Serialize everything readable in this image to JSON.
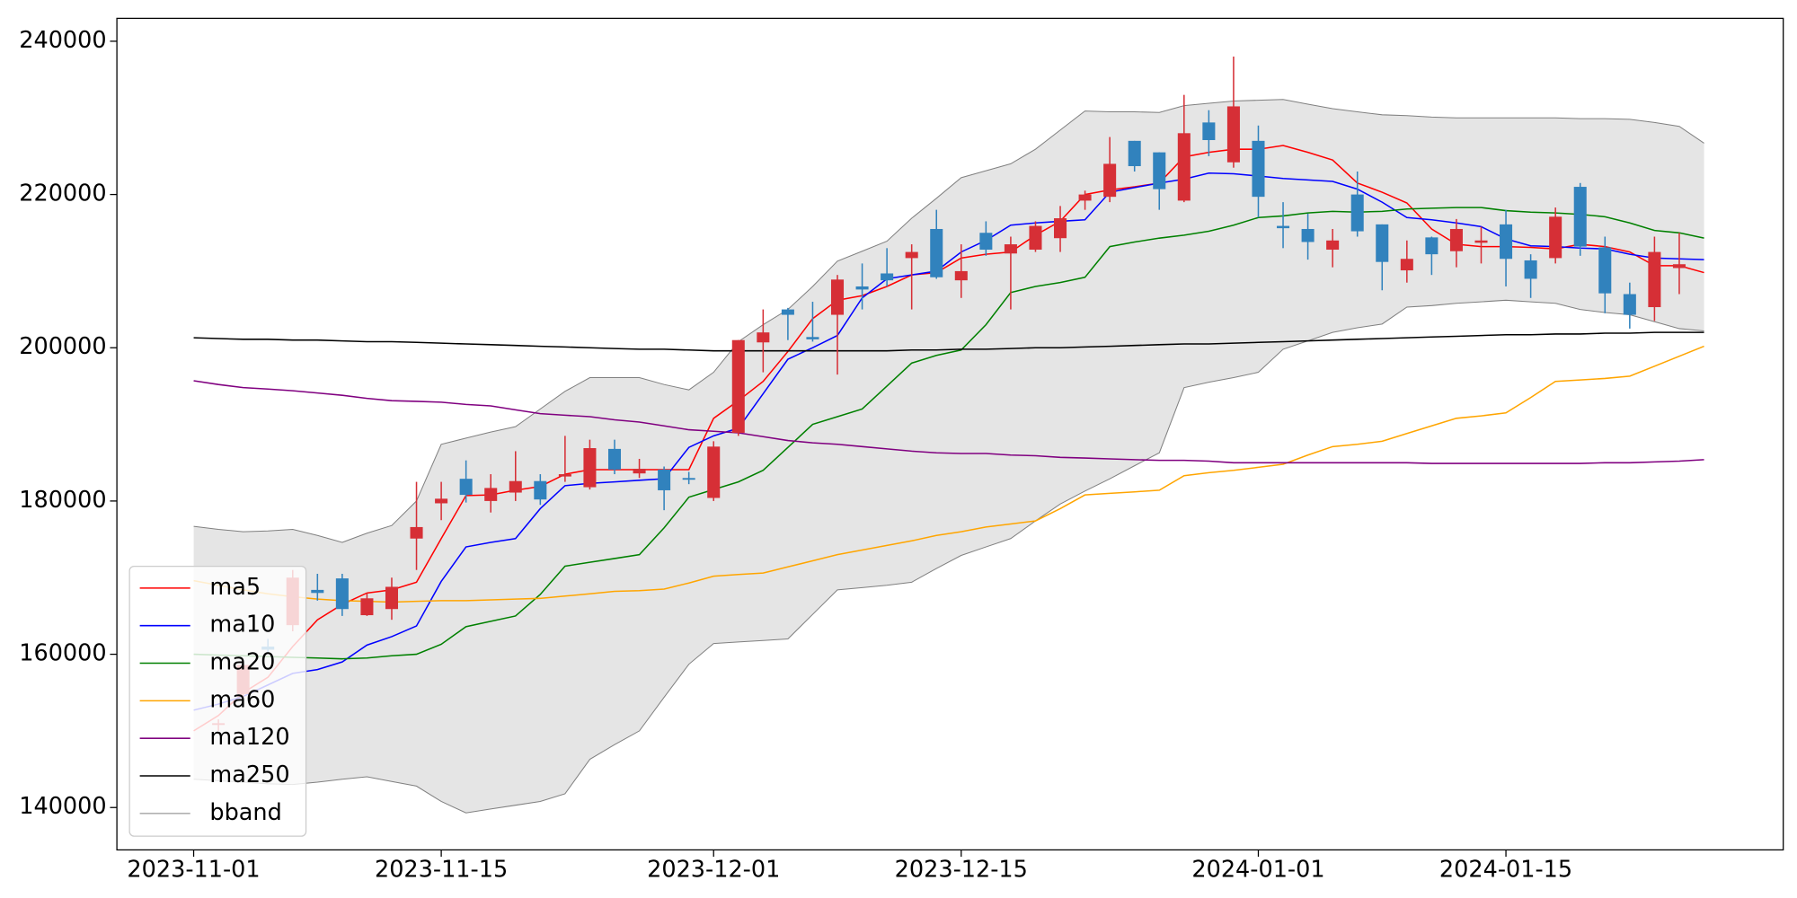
{
  "chart_data": {
    "type": "candlestick",
    "categories": [
      "2023-11-01",
      null,
      null,
      null,
      null,
      null,
      null,
      null,
      null,
      null,
      "2023-11-15",
      null,
      null,
      null,
      null,
      null,
      null,
      null,
      null,
      null,
      null,
      "2023-12-01",
      null,
      null,
      null,
      null,
      null,
      null,
      null,
      null,
      null,
      "2023-12-15",
      null,
      null,
      null,
      null,
      null,
      null,
      null,
      null,
      null,
      null,
      null,
      "2024-01-01",
      null,
      null,
      null,
      null,
      null,
      null,
      null,
      null,
      null,
      "2024-01-15",
      null,
      null,
      null,
      null,
      null,
      null,
      null,
      null
    ],
    "open": [
      null,
      150800,
      154800,
      161000,
      163800,
      168400,
      169900,
      165100,
      165900,
      175100,
      179700,
      182900,
      180000,
      181100,
      182600,
      183200,
      181800,
      186800,
      183600,
      184100,
      183000,
      180400,
      188900,
      200700,
      205000,
      201400,
      204300,
      208000,
      209700,
      211700,
      215500,
      208800,
      215000,
      212300,
      212800,
      214300,
      219200,
      219700,
      227000,
      225500,
      219200,
      229400,
      224200,
      227000,
      215900,
      215500,
      212800,
      220000,
      216100,
      210100,
      214400,
      212600,
      213700,
      216100,
      211400,
      211700,
      221000,
      213100,
      207000,
      205300,
      210400,
      null
    ],
    "close": [
      null,
      151000,
      158600,
      160600,
      170000,
      168000,
      165900,
      167300,
      168800,
      176600,
      180300,
      180800,
      181700,
      182600,
      180200,
      183500,
      186900,
      184100,
      184200,
      181400,
      182800,
      187100,
      201000,
      202000,
      204300,
      201100,
      208900,
      207600,
      208800,
      212500,
      209200,
      210000,
      212800,
      213500,
      215900,
      216900,
      220000,
      224000,
      223700,
      220700,
      228000,
      227100,
      231500,
      219700,
      215600,
      213800,
      214000,
      215200,
      211200,
      211600,
      212200,
      215500,
      214000,
      211600,
      209000,
      217100,
      213200,
      207100,
      204300,
      212500,
      210900,
      null
    ],
    "high": [
      null,
      151500,
      159000,
      162000,
      171000,
      170500,
      170500,
      168000,
      170000,
      182500,
      182500,
      185300,
      183500,
      186500,
      183500,
      188500,
      188000,
      188000,
      185500,
      184500,
      183800,
      187800,
      201000,
      205000,
      205200,
      206000,
      209500,
      211000,
      213000,
      213500,
      218000,
      213500,
      216500,
      214500,
      216500,
      218500,
      220500,
      227500,
      227000,
      225500,
      233000,
      231000,
      238000,
      229000,
      219000,
      217500,
      215500,
      223000,
      216100,
      214000,
      214500,
      216800,
      215800,
      218000,
      212200,
      218300,
      221500,
      214500,
      208500,
      214500,
      215000,
      null
    ],
    "low": [
      null,
      150000,
      154000,
      160000,
      163000,
      167000,
      165000,
      165000,
      164500,
      171000,
      177500,
      179800,
      178500,
      180000,
      179500,
      182500,
      181500,
      183500,
      183000,
      178800,
      182200,
      180000,
      188500,
      196800,
      201000,
      200800,
      196500,
      205000,
      208000,
      205000,
      209000,
      206500,
      212000,
      205000,
      212500,
      212500,
      218000,
      219000,
      223000,
      218000,
      219000,
      225000,
      223500,
      217000,
      213000,
      211500,
      210500,
      214500,
      207500,
      208500,
      209500,
      210500,
      211000,
      208000,
      206500,
      211000,
      212000,
      204500,
      202500,
      203500,
      207000,
      null
    ],
    "up_color": "#d62f36",
    "down_color": "#3182bd",
    "series": [
      {
        "name": "ma5",
        "color": "#ff0000",
        "values": [
          150000,
          152000,
          155000,
          157000,
          161000,
          164500,
          166500,
          168000,
          168400,
          169400,
          175100,
          180700,
          180800,
          181400,
          181900,
          183500,
          184100,
          184100,
          184100,
          184100,
          184100,
          190800,
          193100,
          195600,
          199500,
          203800,
          206200,
          206800,
          208000,
          209500,
          209800,
          211700,
          212200,
          212500,
          214700,
          216500,
          220000,
          220600,
          221000,
          221500,
          224900,
          225500,
          225900,
          225900,
          226400,
          225500,
          224500,
          221500,
          220300,
          218900,
          215500,
          213500,
          213200,
          213200,
          213100,
          212900,
          213500,
          213200,
          212500,
          210700,
          210700,
          209800
        ]
      },
      {
        "name": "ma10",
        "color": "#0000ff",
        "values": [
          152700,
          153500,
          154500,
          156000,
          157500,
          158000,
          159000,
          161200,
          162300,
          163700,
          169500,
          174000,
          174600,
          175100,
          179000,
          182000,
          182300,
          182500,
          182700,
          182900,
          187000,
          188500,
          189500,
          194000,
          198500,
          200000,
          201600,
          206500,
          209000,
          209500,
          210000,
          212500,
          214000,
          216000,
          216300,
          216500,
          216700,
          220300,
          220900,
          221500,
          222000,
          222800,
          222700,
          222400,
          222100,
          221900,
          221700,
          220700,
          219000,
          217000,
          216700,
          216300,
          215800,
          214200,
          213300,
          213200,
          213000,
          212900,
          212200,
          211700,
          211600,
          211500
        ]
      },
      {
        "name": "ma20",
        "color": "#008000",
        "values": [
          160000,
          159900,
          159800,
          159700,
          159600,
          159500,
          159400,
          159500,
          159800,
          160000,
          161300,
          163600,
          164300,
          165000,
          167800,
          171500,
          172000,
          172500,
          173000,
          176500,
          180500,
          181500,
          182500,
          184000,
          187000,
          190000,
          191000,
          192000,
          195000,
          198000,
          199000,
          199700,
          203000,
          207200,
          208000,
          208500,
          209200,
          213200,
          213800,
          214300,
          214700,
          215200,
          216000,
          217000,
          217200,
          217600,
          217800,
          217700,
          217800,
          218100,
          218200,
          218300,
          218300,
          217900,
          217700,
          217600,
          217400,
          217100,
          216300,
          215300,
          215000,
          214300
        ]
      },
      {
        "name": "ma60",
        "color": "#ffa500",
        "values": [
          169600,
          169000,
          168400,
          167900,
          167500,
          167200,
          167000,
          166900,
          166800,
          166900,
          167000,
          167000,
          167100,
          167200,
          167300,
          167600,
          167900,
          168200,
          168300,
          168500,
          169300,
          170200,
          170400,
          170600,
          171400,
          172200,
          173000,
          173600,
          174200,
          174800,
          175500,
          176000,
          176600,
          177000,
          177400,
          179000,
          180800,
          181000,
          181200,
          181400,
          183300,
          183700,
          184000,
          184400,
          184800,
          186000,
          187100,
          187400,
          187800,
          188800,
          189800,
          190800,
          191100,
          191500,
          193500,
          195600,
          195800,
          196000,
          196300,
          197600,
          198900,
          200200
        ]
      },
      {
        "name": "ma120",
        "color": "#800080",
        "values": [
          195700,
          195200,
          194800,
          194600,
          194400,
          194100,
          193800,
          193400,
          193100,
          193000,
          192900,
          192600,
          192400,
          191900,
          191400,
          191200,
          191000,
          190600,
          190300,
          189800,
          189300,
          189100,
          188900,
          188400,
          187900,
          187600,
          187400,
          187100,
          186800,
          186500,
          186300,
          186200,
          186200,
          186000,
          185900,
          185700,
          185600,
          185500,
          185400,
          185300,
          185300,
          185200,
          185000,
          185000,
          185000,
          185000,
          185000,
          185000,
          185000,
          185000,
          184900,
          184900,
          184900,
          184900,
          184900,
          184900,
          184900,
          185000,
          185000,
          185100,
          185200,
          185400
        ]
      },
      {
        "name": "ma250",
        "color": "#000000",
        "values": [
          201300,
          201200,
          201100,
          201100,
          201000,
          201000,
          200900,
          200800,
          200800,
          200700,
          200600,
          200500,
          200400,
          200300,
          200200,
          200100,
          200000,
          199900,
          199800,
          199800,
          199700,
          199600,
          199600,
          199600,
          199600,
          199600,
          199600,
          199600,
          199600,
          199700,
          199700,
          199800,
          199800,
          199900,
          200000,
          200000,
          200100,
          200200,
          200300,
          200400,
          200500,
          200500,
          200600,
          200700,
          200800,
          200900,
          201000,
          201100,
          201200,
          201300,
          201400,
          201500,
          201600,
          201700,
          201700,
          201800,
          201800,
          201900,
          201900,
          202000,
          202000,
          202000
        ]
      }
    ],
    "band": {
      "name": "bband",
      "color": "#808080",
      "fill": "#e5e5e5",
      "upper": [
        176700,
        176300,
        176000,
        176100,
        176300,
        175500,
        174600,
        175800,
        176800,
        180000,
        187400,
        188200,
        189000,
        189700,
        192000,
        194300,
        196100,
        196100,
        196100,
        195200,
        194500,
        196800,
        200800,
        203000,
        205000,
        208000,
        211300,
        212600,
        213900,
        216900,
        219500,
        222200,
        223100,
        224000,
        225900,
        228400,
        230900,
        230800,
        230800,
        230700,
        231600,
        231900,
        232200,
        232300,
        232400,
        231800,
        231200,
        230800,
        230400,
        230300,
        230100,
        230000,
        230000,
        230000,
        230000,
        230000,
        229900,
        229900,
        229800,
        229400,
        228900,
        226700
      ],
      "lower": [
        143700,
        143500,
        143300,
        143100,
        143000,
        143300,
        143700,
        144000,
        143400,
        142800,
        140800,
        139300,
        139800,
        140300,
        140800,
        141800,
        146300,
        148200,
        150000,
        154400,
        158700,
        161400,
        161600,
        161800,
        162000,
        165200,
        168400,
        168700,
        169000,
        169400,
        171200,
        172900,
        174000,
        175100,
        177400,
        179600,
        181300,
        182900,
        184600,
        186300,
        194800,
        195500,
        196100,
        196800,
        199800,
        200900,
        202000,
        202600,
        203100,
        205300,
        205500,
        205800,
        206000,
        206200,
        206000,
        205800,
        205000,
        204600,
        204300,
        203400,
        202500,
        202200
      ]
    },
    "xlim": [
      -3.1,
      64.2
    ],
    "ylim": [
      134470,
      242990
    ],
    "yticks": [
      140000,
      160000,
      180000,
      200000,
      220000,
      240000
    ],
    "grid": false,
    "legend": "lower left"
  }
}
